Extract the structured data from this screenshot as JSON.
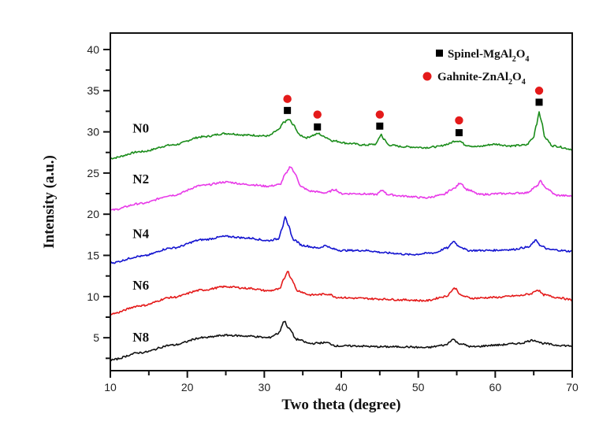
{
  "chart_data": {
    "type": "line",
    "title": "",
    "xlabel": "Two theta (degree)",
    "ylabel": "Intensity (a.u.)",
    "xlim": [
      10,
      70
    ],
    "ylim": [
      1,
      42
    ],
    "grid": false,
    "x_ticks": [
      10,
      20,
      30,
      40,
      50,
      60,
      70
    ],
    "y_ticks": [
      5,
      10,
      15,
      20,
      25,
      30,
      35,
      40
    ],
    "series": [
      {
        "name": "N0",
        "color": "#1a8c1a",
        "points": [
          [
            10,
            26.8
          ],
          [
            14,
            27.6
          ],
          [
            18,
            28.4
          ],
          [
            22,
            29.4
          ],
          [
            25,
            29.8
          ],
          [
            28,
            29.6
          ],
          [
            30.5,
            29.5
          ],
          [
            31.8,
            30.2
          ],
          [
            32.6,
            31.2
          ],
          [
            33.2,
            31.5
          ],
          [
            33.8,
            30.8
          ],
          [
            34.6,
            29.6
          ],
          [
            35.5,
            29.3
          ],
          [
            36.4,
            29.6
          ],
          [
            37.0,
            29.8
          ],
          [
            37.8,
            29.4
          ],
          [
            39,
            28.9
          ],
          [
            41,
            28.6
          ],
          [
            43,
            28.4
          ],
          [
            44.5,
            28.5
          ],
          [
            45.0,
            29.4
          ],
          [
            45.2,
            29.7
          ],
          [
            45.5,
            29.1
          ],
          [
            46.2,
            28.4
          ],
          [
            48,
            28.2
          ],
          [
            51,
            28.1
          ],
          [
            52.5,
            28.2
          ],
          [
            53.8,
            28.5
          ],
          [
            54.8,
            28.9
          ],
          [
            55.3,
            28.9
          ],
          [
            56.2,
            28.4
          ],
          [
            57.5,
            28.2
          ],
          [
            60,
            28.5
          ],
          [
            62,
            28.3
          ],
          [
            64,
            28.4
          ],
          [
            64.9,
            29.2
          ],
          [
            65.4,
            31.0
          ],
          [
            65.7,
            32.5
          ],
          [
            66.0,
            31.2
          ],
          [
            66.5,
            29.2
          ],
          [
            67.5,
            28.3
          ],
          [
            70,
            27.9
          ]
        ]
      },
      {
        "name": "N2",
        "color": "#e83ae8",
        "points": [
          [
            10,
            20.5
          ],
          [
            14,
            21.3
          ],
          [
            18,
            22.3
          ],
          [
            22,
            23.5
          ],
          [
            25,
            23.9
          ],
          [
            28,
            23.6
          ],
          [
            30.5,
            23.4
          ],
          [
            32.0,
            23.6
          ],
          [
            32.8,
            24.9
          ],
          [
            33.4,
            25.8
          ],
          [
            34.0,
            24.9
          ],
          [
            34.8,
            23.3
          ],
          [
            36,
            22.8
          ],
          [
            38,
            22.6
          ],
          [
            39.2,
            23.0
          ],
          [
            40,
            22.5
          ],
          [
            42,
            22.5
          ],
          [
            44.5,
            22.4
          ],
          [
            45.4,
            22.9
          ],
          [
            46,
            22.4
          ],
          [
            48,
            22.2
          ],
          [
            51,
            22.0
          ],
          [
            53,
            22.3
          ],
          [
            54.6,
            23.1
          ],
          [
            55.5,
            23.8
          ],
          [
            56.3,
            23.0
          ],
          [
            58,
            22.4
          ],
          [
            61,
            22.5
          ],
          [
            64,
            22.6
          ],
          [
            65.3,
            23.3
          ],
          [
            65.9,
            24.0
          ],
          [
            66.5,
            23.2
          ],
          [
            68,
            22.3
          ],
          [
            70,
            22.2
          ]
        ]
      },
      {
        "name": "N4",
        "color": "#1515d0",
        "points": [
          [
            10,
            14.1
          ],
          [
            14,
            14.9
          ],
          [
            18,
            15.9
          ],
          [
            22,
            16.9
          ],
          [
            25,
            17.3
          ],
          [
            28,
            17.1
          ],
          [
            30.5,
            16.8
          ],
          [
            31.8,
            17.0
          ],
          [
            32.3,
            18.3
          ],
          [
            32.7,
            19.6
          ],
          [
            33.1,
            18.6
          ],
          [
            33.8,
            16.9
          ],
          [
            35,
            16.2
          ],
          [
            37,
            15.9
          ],
          [
            38,
            16.2
          ],
          [
            38.8,
            15.8
          ],
          [
            40,
            15.6
          ],
          [
            43,
            15.6
          ],
          [
            46,
            15.3
          ],
          [
            49,
            15.1
          ],
          [
            52,
            15.3
          ],
          [
            53.8,
            15.9
          ],
          [
            54.6,
            16.7
          ],
          [
            55.3,
            16.1
          ],
          [
            56.5,
            15.6
          ],
          [
            59,
            15.6
          ],
          [
            62,
            15.7
          ],
          [
            64.3,
            16.0
          ],
          [
            65.3,
            16.8
          ],
          [
            66.0,
            16.1
          ],
          [
            67,
            15.7
          ],
          [
            70,
            15.5
          ]
        ]
      },
      {
        "name": "N6",
        "color": "#e41a1a",
        "points": [
          [
            10,
            7.9
          ],
          [
            14,
            8.9
          ],
          [
            18,
            9.9
          ],
          [
            22,
            10.8
          ],
          [
            25,
            11.2
          ],
          [
            28,
            11.0
          ],
          [
            30.5,
            10.7
          ],
          [
            32.0,
            10.9
          ],
          [
            32.6,
            12.2
          ],
          [
            33.0,
            13.1
          ],
          [
            33.5,
            12.2
          ],
          [
            34.3,
            10.7
          ],
          [
            36,
            10.2
          ],
          [
            38.3,
            10.3
          ],
          [
            39.5,
            9.9
          ],
          [
            42,
            9.8
          ],
          [
            45,
            9.7
          ],
          [
            48,
            9.6
          ],
          [
            51,
            9.5
          ],
          [
            53.5,
            10.0
          ],
          [
            54.8,
            11.0
          ],
          [
            55.6,
            10.1
          ],
          [
            57,
            9.8
          ],
          [
            60,
            9.9
          ],
          [
            63,
            10.1
          ],
          [
            64.5,
            10.3
          ],
          [
            65.5,
            10.8
          ],
          [
            66.3,
            10.2
          ],
          [
            68,
            9.9
          ],
          [
            70,
            9.6
          ]
        ]
      },
      {
        "name": "N8",
        "color": "#111111",
        "points": [
          [
            10,
            2.3
          ],
          [
            14,
            3.2
          ],
          [
            18,
            4.1
          ],
          [
            22,
            5.0
          ],
          [
            25,
            5.3
          ],
          [
            28,
            5.2
          ],
          [
            30.5,
            5.0
          ],
          [
            31.8,
            5.5
          ],
          [
            32.6,
            7.0
          ],
          [
            33.2,
            6.1
          ],
          [
            34.2,
            4.8
          ],
          [
            36,
            4.3
          ],
          [
            38,
            4.4
          ],
          [
            39.5,
            4.0
          ],
          [
            42,
            4.0
          ],
          [
            45,
            3.9
          ],
          [
            48,
            3.9
          ],
          [
            51,
            3.8
          ],
          [
            53.5,
            4.1
          ],
          [
            54.5,
            4.8
          ],
          [
            55.3,
            4.3
          ],
          [
            57,
            3.9
          ],
          [
            60,
            4.1
          ],
          [
            63,
            4.3
          ],
          [
            65,
            4.7
          ],
          [
            66.3,
            4.3
          ],
          [
            68,
            4.1
          ],
          [
            70,
            4.0
          ]
        ]
      }
    ],
    "sample_labels": [
      {
        "text": "N0",
        "x": 13,
        "y": 30.5
      },
      {
        "text": "N2",
        "x": 13,
        "y": 24.3
      },
      {
        "text": "N4",
        "x": 13,
        "y": 17.7
      },
      {
        "text": "N6",
        "x": 13,
        "y": 11.4
      },
      {
        "text": "N8",
        "x": 13,
        "y": 5.1
      }
    ],
    "markers": {
      "spinel": {
        "label": "Spinel-MgAl",
        "sub1": "2",
        "mid": "O",
        "sub2": "4",
        "color": "#000000",
        "points": [
          [
            33.0,
            32.6
          ],
          [
            36.9,
            30.6
          ],
          [
            45.0,
            30.7
          ],
          [
            55.3,
            29.9
          ],
          [
            65.7,
            33.6
          ]
        ]
      },
      "gahnite": {
        "label": "Gahnite-ZnAl",
        "sub1": "2",
        "mid": "O",
        "sub2": "4",
        "color": "#e41a1a",
        "points": [
          [
            33.0,
            34.0
          ],
          [
            36.9,
            32.1
          ],
          [
            45.0,
            32.1
          ],
          [
            55.3,
            31.4
          ],
          [
            65.7,
            35.0
          ]
        ]
      }
    },
    "legend_position": "top-right"
  }
}
